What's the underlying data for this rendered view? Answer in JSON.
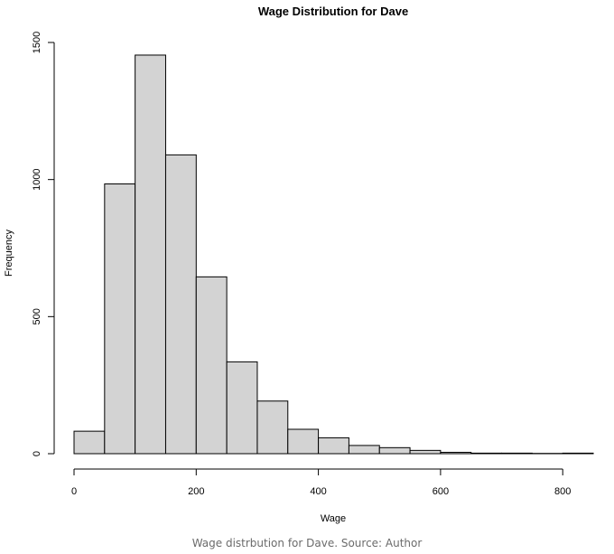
{
  "chart_data": {
    "type": "bar",
    "title": "Wage Distribution for Dave",
    "xlabel": "Wage",
    "ylabel": "Frequency",
    "bin_edges": [
      0,
      50,
      100,
      150,
      200,
      250,
      300,
      350,
      400,
      450,
      500,
      550,
      600,
      650,
      700,
      750,
      800,
      850
    ],
    "values": [
      82,
      984,
      1454,
      1090,
      645,
      335,
      192,
      89,
      58,
      30,
      22,
      12,
      5,
      2,
      2,
      1,
      2
    ],
    "xlim": [
      0,
      850
    ],
    "ylim": [
      0,
      1500
    ],
    "xticks": [
      0,
      200,
      400,
      600,
      800
    ],
    "yticks": [
      0,
      500,
      1000,
      1500
    ],
    "bar_color": "#d3d3d3",
    "bar_edge_color": "#000000",
    "grid": false,
    "legend": "none"
  },
  "caption": "Wage distrbution for Dave. Source: Author"
}
